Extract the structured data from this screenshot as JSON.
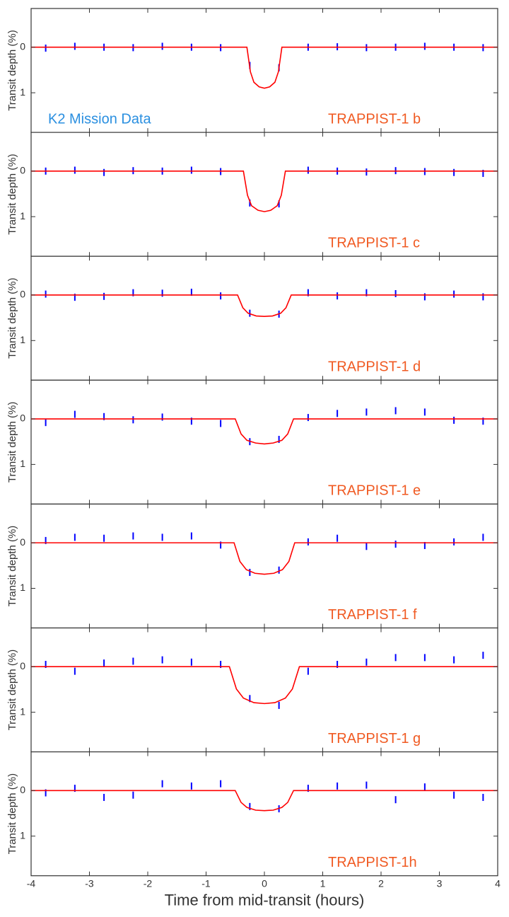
{
  "chart_data": [
    {
      "type": "line",
      "label": "TRAPPIST-1 b",
      "annotation": "K2 Mission Data",
      "ylabel": "Transit depth (%)",
      "xlim": [
        -4,
        4
      ],
      "ylim": [
        -0.85,
        1.87
      ],
      "y_inverted": true,
      "xticks": [
        -4,
        -3,
        -2,
        -1,
        0,
        1,
        2,
        3,
        4
      ],
      "yticks": [
        0,
        1
      ],
      "model": {
        "color": "#ff0000",
        "x": [
          -4,
          -0.3,
          -0.24,
          -0.18,
          -0.09,
          0,
          0.09,
          0.18,
          0.24,
          0.3,
          4
        ],
        "values": [
          0,
          0,
          0.54,
          0.77,
          0.87,
          0.9,
          0.87,
          0.77,
          0.54,
          0,
          0
        ]
      },
      "binned": {
        "color": "#0000ff",
        "x": [
          -3.75,
          -3.25,
          -2.75,
          -2.25,
          -1.75,
          -1.25,
          -0.75,
          -0.25,
          0.25,
          0.75,
          1.25,
          1.75,
          2.25,
          2.75,
          3.25,
          3.75
        ],
        "values": [
          0.02,
          -0.02,
          0,
          0.01,
          -0.02,
          0,
          0.01,
          0.4,
          0.45,
          0,
          -0.01,
          0.01,
          0,
          -0.02,
          0,
          0.01
        ]
      }
    },
    {
      "type": "line",
      "label": "TRAPPIST-1 c",
      "ylabel": "Transit depth (%)",
      "xlim": [
        -4,
        4
      ],
      "ylim": [
        -0.85,
        1.87
      ],
      "y_inverted": true,
      "xticks": [
        -4,
        -3,
        -2,
        -1,
        0,
        1,
        2,
        3,
        4
      ],
      "yticks": [
        0,
        1
      ],
      "model": {
        "color": "#ff0000",
        "x": [
          -4,
          -0.36,
          -0.29,
          -0.22,
          -0.11,
          0,
          0.11,
          0.22,
          0.29,
          0.36,
          4
        ],
        "values": [
          0,
          0,
          0.53,
          0.76,
          0.86,
          0.89,
          0.86,
          0.76,
          0.53,
          0,
          0
        ]
      },
      "binned": {
        "color": "#0000ff",
        "x": [
          -3.75,
          -3.25,
          -2.75,
          -2.25,
          -1.75,
          -1.25,
          -0.75,
          -0.25,
          0.25,
          0.75,
          1.25,
          1.75,
          2.25,
          2.75,
          3.25,
          3.75
        ],
        "values": [
          0,
          -0.02,
          0.03,
          -0.01,
          0,
          -0.02,
          0.01,
          0.7,
          0.72,
          -0.02,
          0,
          0.02,
          -0.01,
          0.01,
          0.03,
          0.05
        ]
      }
    },
    {
      "type": "line",
      "label": "TRAPPIST-1 d",
      "ylabel": "Transit depth (%)",
      "xlim": [
        -4,
        4
      ],
      "ylim": [
        -0.85,
        1.87
      ],
      "y_inverted": true,
      "xticks": [
        -4,
        -3,
        -2,
        -1,
        0,
        1,
        2,
        3,
        4
      ],
      "yticks": [
        0,
        1
      ],
      "model": {
        "color": "#ff0000",
        "x": [
          -4,
          -0.46,
          -0.37,
          -0.28,
          -0.14,
          0,
          0.14,
          0.28,
          0.37,
          0.46,
          4
        ],
        "values": [
          0,
          0,
          0.28,
          0.4,
          0.46,
          0.47,
          0.46,
          0.4,
          0.28,
          0,
          0
        ]
      },
      "binned": {
        "color": "#0000ff",
        "x": [
          -3.75,
          -3.25,
          -2.75,
          -2.25,
          -1.75,
          -1.25,
          -0.75,
          -0.25,
          0.25,
          0.75,
          1.25,
          1.75,
          2.25,
          2.75,
          3.25,
          3.75
        ],
        "values": [
          -0.02,
          0.05,
          0.03,
          -0.05,
          -0.04,
          -0.06,
          0.02,
          0.4,
          0.42,
          -0.05,
          0.02,
          -0.05,
          -0.03,
          0.04,
          -0.02,
          0.04
        ]
      }
    },
    {
      "type": "line",
      "label": "TRAPPIST-1 e",
      "ylabel": "Transit depth (%)",
      "xlim": [
        -4,
        4
      ],
      "ylim": [
        -0.85,
        1.87
      ],
      "y_inverted": true,
      "xticks": [
        -4,
        -3,
        -2,
        -1,
        0,
        1,
        2,
        3,
        4
      ],
      "yticks": [
        0,
        1
      ],
      "model": {
        "color": "#ff0000",
        "x": [
          -4,
          -0.5,
          -0.4,
          -0.3,
          -0.15,
          0,
          0.15,
          0.3,
          0.4,
          0.5,
          4
        ],
        "values": [
          0,
          0,
          0.33,
          0.47,
          0.53,
          0.55,
          0.53,
          0.47,
          0.33,
          0,
          0
        ]
      },
      "binned": {
        "color": "#0000ff",
        "x": [
          -3.75,
          -3.25,
          -2.75,
          -2.25,
          -1.75,
          -1.25,
          -0.75,
          -0.25,
          0.25,
          0.75,
          1.25,
          1.75,
          2.25,
          2.75,
          3.25,
          3.75
        ],
        "values": [
          0.08,
          -0.1,
          -0.05,
          0.02,
          -0.04,
          0.05,
          0.1,
          0.5,
          0.45,
          -0.03,
          -0.12,
          -0.15,
          -0.18,
          -0.15,
          0.03,
          0.05
        ]
      }
    },
    {
      "type": "line",
      "label": "TRAPPIST-1 f",
      "ylabel": "Transit depth (%)",
      "xlim": [
        -4,
        4
      ],
      "ylim": [
        -0.85,
        1.87
      ],
      "y_inverted": true,
      "xticks": [
        -4,
        -3,
        -2,
        -1,
        0,
        1,
        2,
        3,
        4
      ],
      "yticks": [
        0,
        1
      ],
      "model": {
        "color": "#ff0000",
        "x": [
          -4,
          -0.52,
          -0.42,
          -0.31,
          -0.16,
          0,
          0.16,
          0.31,
          0.42,
          0.52,
          4
        ],
        "values": [
          0,
          0,
          0.41,
          0.59,
          0.67,
          0.69,
          0.67,
          0.59,
          0.41,
          0,
          0
        ]
      },
      "binned": {
        "color": "#0000ff",
        "x": [
          -3.75,
          -3.25,
          -2.75,
          -2.25,
          -1.75,
          -1.25,
          -0.75,
          -0.25,
          0.25,
          0.75,
          1.25,
          1.75,
          2.25,
          2.75,
          3.25,
          3.75
        ],
        "values": [
          -0.05,
          -0.12,
          -0.1,
          -0.15,
          -0.12,
          -0.15,
          0.05,
          0.65,
          0.6,
          -0.02,
          -0.1,
          0.08,
          0.03,
          0.06,
          -0.02,
          -0.12
        ]
      }
    },
    {
      "type": "line",
      "label": "TRAPPIST-1 g",
      "ylabel": "Transit depth (%)",
      "xlim": [
        -4,
        4
      ],
      "ylim": [
        -0.85,
        1.87
      ],
      "y_inverted": true,
      "xticks": [
        -4,
        -3,
        -2,
        -1,
        0,
        1,
        2,
        3,
        4
      ],
      "yticks": [
        0,
        1
      ],
      "model": {
        "color": "#ff0000",
        "x": [
          -4,
          -0.6,
          -0.48,
          -0.36,
          -0.18,
          0,
          0.18,
          0.36,
          0.48,
          0.6,
          4
        ],
        "values": [
          0,
          0,
          0.49,
          0.69,
          0.79,
          0.81,
          0.79,
          0.69,
          0.49,
          0,
          0
        ]
      },
      "binned": {
        "color": "#0000ff",
        "x": [
          -3.75,
          -3.25,
          -2.75,
          -2.25,
          -1.75,
          -1.25,
          -0.75,
          -0.25,
          0.25,
          0.75,
          1.25,
          1.75,
          2.25,
          2.75,
          3.25,
          3.75
        ],
        "values": [
          -0.05,
          0.1,
          -0.08,
          -0.12,
          -0.15,
          -0.1,
          -0.05,
          0.7,
          0.85,
          0.1,
          -0.05,
          -0.1,
          -0.2,
          -0.2,
          -0.15,
          -0.25
        ]
      }
    },
    {
      "type": "line",
      "label": "TRAPPIST-1h",
      "ylabel": "Transit depth (%)",
      "xlabel": "Time from mid-transit (hours)",
      "xlim": [
        -4,
        4
      ],
      "ylim": [
        -0.85,
        1.87
      ],
      "y_inverted": true,
      "xticks": [
        -4,
        -3,
        -2,
        -1,
        0,
        1,
        2,
        3,
        4
      ],
      "yticks": [
        0,
        1
      ],
      "model": {
        "color": "#ff0000",
        "x": [
          -4,
          -0.5,
          -0.4,
          -0.3,
          -0.15,
          0,
          0.15,
          0.3,
          0.4,
          0.5,
          4
        ],
        "values": [
          0,
          0,
          0.26,
          0.37,
          0.43,
          0.44,
          0.43,
          0.37,
          0.26,
          0,
          0
        ]
      },
      "binned": {
        "color": "#0000ff",
        "x": [
          -3.75,
          -3.25,
          -2.75,
          -2.25,
          -1.75,
          -1.25,
          -0.75,
          -0.25,
          0.25,
          0.75,
          1.25,
          1.75,
          2.25,
          2.75,
          3.25,
          3.75
        ],
        "values": [
          0.05,
          -0.05,
          0.15,
          0.1,
          -0.15,
          -0.1,
          -0.15,
          0.35,
          0.4,
          -0.05,
          -0.1,
          -0.12,
          0.2,
          -0.08,
          0.1,
          0.15
        ]
      }
    }
  ]
}
